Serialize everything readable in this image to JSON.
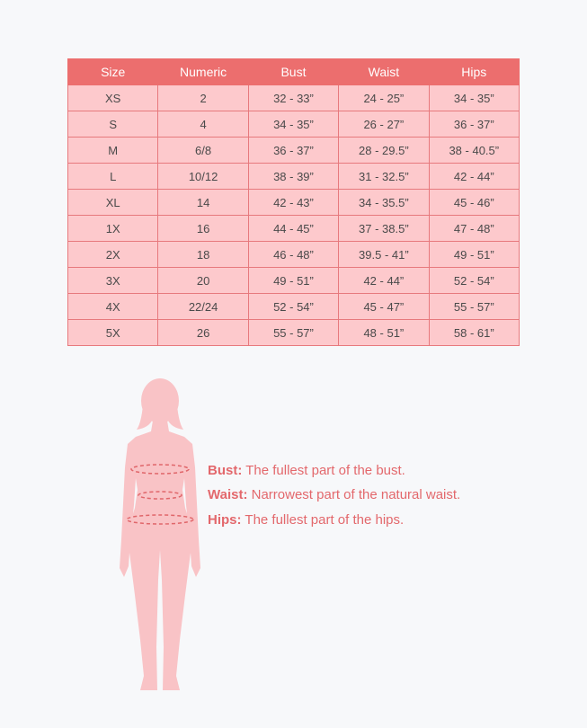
{
  "table": {
    "headers": [
      "Size",
      "Numeric",
      "Bust",
      "Waist",
      "Hips"
    ],
    "rows": [
      [
        "XS",
        "2",
        "32  -  33”",
        "24 - 25”",
        "34 - 35”"
      ],
      [
        "S",
        "4",
        "34 - 35”",
        "26 - 27”",
        "36 - 37”"
      ],
      [
        "M",
        "6/8",
        "36 - 37”",
        "28 - 29.5”",
        "38 - 40.5”"
      ],
      [
        "L",
        "10/12",
        "38 - 39”",
        "31 - 32.5”",
        "42 - 44”"
      ],
      [
        "XL",
        "14",
        "42 - 43”",
        "34 - 35.5”",
        "45 - 46”"
      ],
      [
        "1X",
        "16",
        "44 - 45”",
        "37 - 38.5”",
        "47 - 48”"
      ],
      [
        "2X",
        "18",
        "46 - 48”",
        "39.5 - 41”",
        "49 - 51”"
      ],
      [
        "3X",
        "20",
        "49 - 51”",
        "42 - 44”",
        "52 - 54”"
      ],
      [
        "4X",
        "22/24",
        "52 - 54”",
        "45 - 47”",
        "55 - 57”"
      ],
      [
        "5X",
        "26",
        "55 - 57”",
        "48 - 51”",
        "58 - 61”"
      ]
    ]
  },
  "labels": [
    {
      "term": "Bust:",
      "text": "The fullest part of the bust."
    },
    {
      "term": "Waist:",
      "text": "Narrowest part of the natural waist."
    },
    {
      "term": "Hips:",
      "text": "The fullest part of the hips."
    }
  ]
}
